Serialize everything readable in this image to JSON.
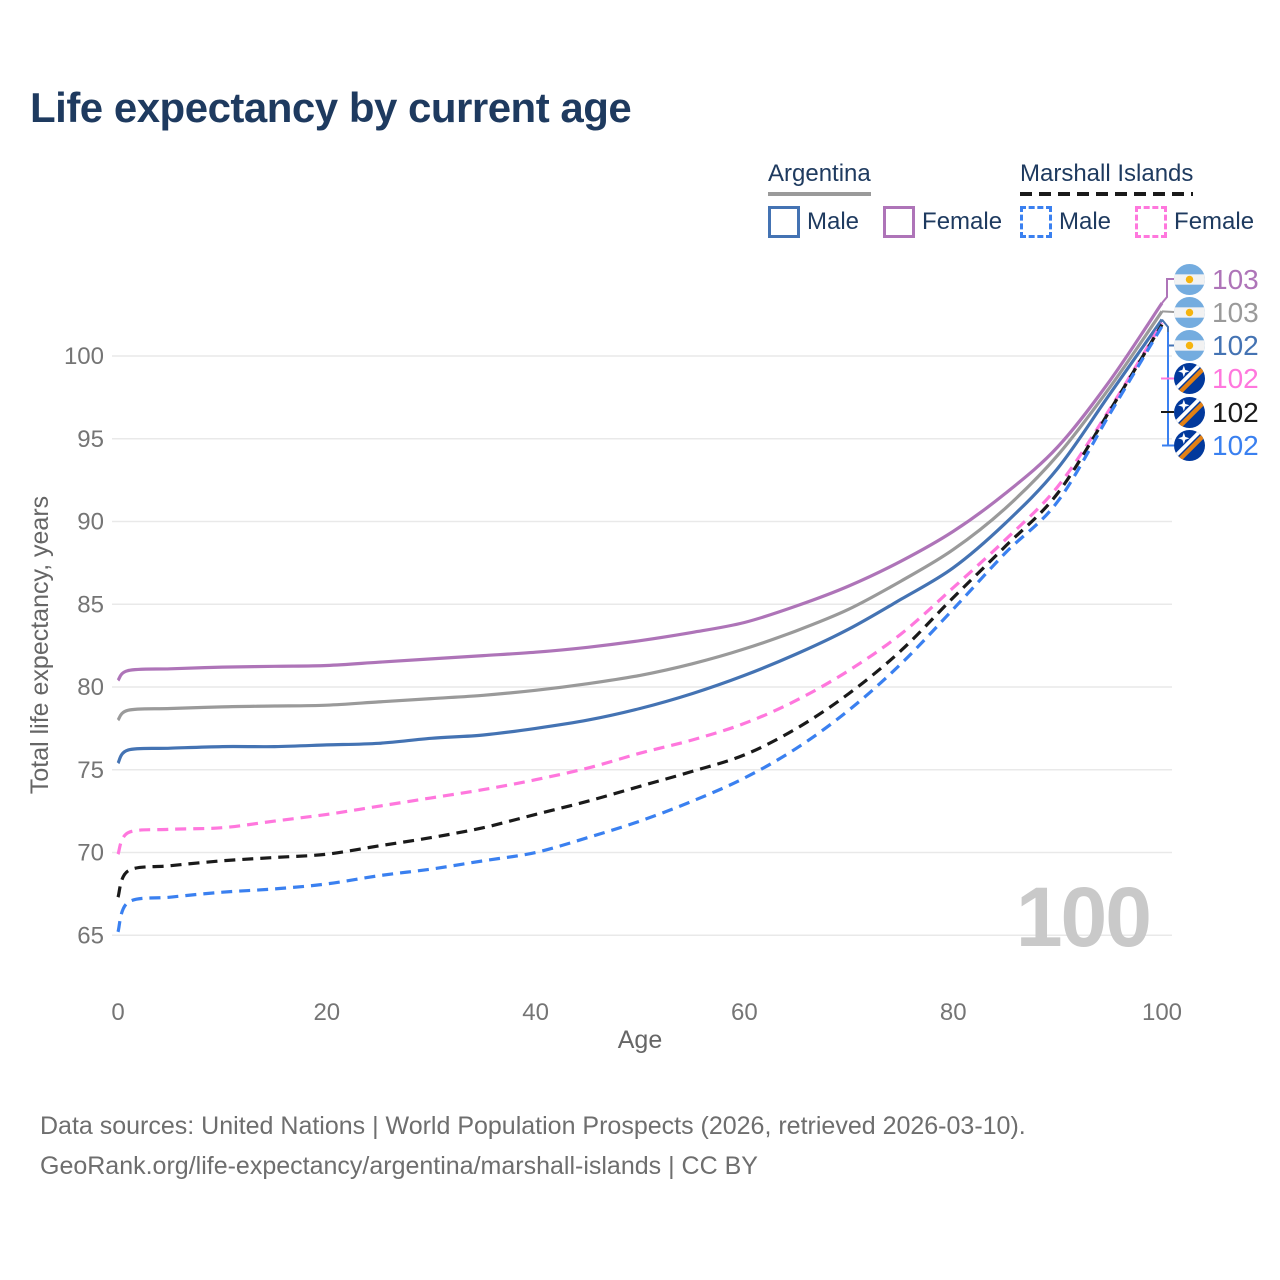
{
  "title": "Life expectancy by current age",
  "legend": {
    "groups": [
      {
        "name": "Argentina",
        "line_style": "solid",
        "line_color": "#9a9a9a",
        "items": [
          {
            "label": "Male",
            "color": "#4473b3",
            "dashed": false
          },
          {
            "label": "Female",
            "color": "#ae74b8",
            "dashed": false
          }
        ]
      },
      {
        "name": "Marshall Islands",
        "line_style": "dashed",
        "line_color": "#1a1a1a",
        "items": [
          {
            "label": "Male",
            "color": "#3a80f0",
            "dashed": true
          },
          {
            "label": "Female",
            "color": "#ff77dd",
            "dashed": true
          }
        ]
      }
    ]
  },
  "axes": {
    "x": {
      "label": "Age",
      "ticks": [
        0,
        20,
        40,
        60,
        80,
        100
      ]
    },
    "y": {
      "label": "Total life expectancy, years",
      "ticks": [
        65,
        70,
        75,
        80,
        85,
        90,
        95,
        100
      ]
    }
  },
  "watermark": "100",
  "footer": {
    "line1": "Data sources: United Nations | World Population Prospects (2026, retrieved 2026-03-10).",
    "line2": "GeoRank.org/life-expectancy/argentina/marshall-islands | CC BY"
  },
  "end_labels": [
    {
      "value": "103",
      "color": "#ae74b8",
      "flag": "argentina",
      "series": "argentina-female"
    },
    {
      "value": "103",
      "color": "#9a9a9a",
      "flag": "argentina",
      "series": "argentina-both"
    },
    {
      "value": "102",
      "color": "#4473b3",
      "flag": "argentina",
      "series": "argentina-male"
    },
    {
      "value": "102",
      "color": "#ff77dd",
      "flag": "marshall-islands",
      "series": "marshall-islands-female"
    },
    {
      "value": "102",
      "color": "#1a1a1a",
      "flag": "marshall-islands",
      "series": "marshall-islands-both"
    },
    {
      "value": "102",
      "color": "#3a80f0",
      "flag": "marshall-islands",
      "series": "marshall-islands-male"
    }
  ],
  "colors": {
    "navy": "#1e3a5f",
    "grid": "#e9e9e9",
    "tick_text": "#757575",
    "axis_title": "#666666",
    "footer_text": "#6e6e6e",
    "watermark": "#c9c9c9"
  },
  "chart_data": {
    "type": "line",
    "title": "Life expectancy by current age",
    "xlabel": "Age",
    "ylabel": "Total life expectancy, years",
    "xlim": [
      0,
      100
    ],
    "ylim": [
      63,
      104
    ],
    "grid": "horizontal-only",
    "legend_position": "top-right",
    "series": [
      {
        "id": "argentina-female",
        "name": "Argentina Female",
        "country": "Argentina",
        "sex": "Female",
        "color": "#ae74b8",
        "dashed": false,
        "end_label": 103,
        "points": [
          [
            0,
            80.4
          ],
          [
            1,
            81.0
          ],
          [
            5,
            81.1
          ],
          [
            10,
            81.2
          ],
          [
            15,
            81.25
          ],
          [
            20,
            81.3
          ],
          [
            25,
            81.5
          ],
          [
            30,
            81.7
          ],
          [
            35,
            81.9
          ],
          [
            40,
            82.1
          ],
          [
            45,
            82.4
          ],
          [
            50,
            82.8
          ],
          [
            55,
            83.3
          ],
          [
            60,
            83.9
          ],
          [
            65,
            84.9
          ],
          [
            70,
            86.1
          ],
          [
            75,
            87.6
          ],
          [
            80,
            89.4
          ],
          [
            85,
            91.7
          ],
          [
            90,
            94.5
          ],
          [
            95,
            98.5
          ],
          [
            100,
            103.2
          ]
        ]
      },
      {
        "id": "argentina-both",
        "name": "Argentina Both sexes",
        "country": "Argentina",
        "sex": "Both",
        "color": "#9a9a9a",
        "dashed": false,
        "end_label": 103,
        "points": [
          [
            0,
            78.0
          ],
          [
            1,
            78.6
          ],
          [
            5,
            78.7
          ],
          [
            10,
            78.8
          ],
          [
            15,
            78.85
          ],
          [
            20,
            78.9
          ],
          [
            25,
            79.1
          ],
          [
            30,
            79.3
          ],
          [
            35,
            79.5
          ],
          [
            40,
            79.8
          ],
          [
            45,
            80.2
          ],
          [
            50,
            80.7
          ],
          [
            55,
            81.4
          ],
          [
            60,
            82.3
          ],
          [
            65,
            83.4
          ],
          [
            70,
            84.7
          ],
          [
            75,
            86.4
          ],
          [
            80,
            88.3
          ],
          [
            85,
            90.8
          ],
          [
            90,
            94.0
          ],
          [
            95,
            98.1
          ],
          [
            100,
            102.7
          ]
        ]
      },
      {
        "id": "argentina-male",
        "name": "Argentina Male",
        "country": "Argentina",
        "sex": "Male",
        "color": "#4473b3",
        "dashed": false,
        "end_label": 102,
        "points": [
          [
            0,
            75.4
          ],
          [
            1,
            76.2
          ],
          [
            5,
            76.3
          ],
          [
            10,
            76.4
          ],
          [
            15,
            76.4
          ],
          [
            20,
            76.5
          ],
          [
            25,
            76.6
          ],
          [
            30,
            76.9
          ],
          [
            35,
            77.1
          ],
          [
            40,
            77.5
          ],
          [
            45,
            78.0
          ],
          [
            50,
            78.7
          ],
          [
            55,
            79.6
          ],
          [
            60,
            80.7
          ],
          [
            65,
            82.0
          ],
          [
            70,
            83.5
          ],
          [
            75,
            85.3
          ],
          [
            80,
            87.2
          ],
          [
            85,
            89.9
          ],
          [
            90,
            93.2
          ],
          [
            95,
            97.7
          ],
          [
            100,
            102.2
          ]
        ]
      },
      {
        "id": "marshall-islands-female",
        "name": "Marshall Islands Female",
        "country": "Marshall Islands",
        "sex": "Female",
        "color": "#ff77dd",
        "dashed": true,
        "end_label": 102,
        "points": [
          [
            0,
            69.9
          ],
          [
            1,
            71.2
          ],
          [
            5,
            71.4
          ],
          [
            10,
            71.5
          ],
          [
            15,
            71.9
          ],
          [
            20,
            72.3
          ],
          [
            25,
            72.8
          ],
          [
            30,
            73.3
          ],
          [
            35,
            73.8
          ],
          [
            40,
            74.4
          ],
          [
            45,
            75.1
          ],
          [
            50,
            76.0
          ],
          [
            55,
            76.8
          ],
          [
            60,
            77.8
          ],
          [
            65,
            79.2
          ],
          [
            70,
            81.0
          ],
          [
            75,
            83.2
          ],
          [
            80,
            86.0
          ],
          [
            85,
            88.9
          ],
          [
            90,
            92.1
          ],
          [
            95,
            96.8
          ],
          [
            100,
            102.0
          ]
        ]
      },
      {
        "id": "marshall-islands-both",
        "name": "Marshall Islands Both sexes",
        "country": "Marshall Islands",
        "sex": "Both",
        "color": "#1a1a1a",
        "dashed": true,
        "end_label": 102,
        "points": [
          [
            0,
            67.3
          ],
          [
            1,
            68.9
          ],
          [
            5,
            69.2
          ],
          [
            10,
            69.5
          ],
          [
            15,
            69.7
          ],
          [
            20,
            69.9
          ],
          [
            25,
            70.4
          ],
          [
            30,
            70.9
          ],
          [
            35,
            71.5
          ],
          [
            40,
            72.3
          ],
          [
            45,
            73.1
          ],
          [
            50,
            74.0
          ],
          [
            55,
            74.9
          ],
          [
            60,
            75.9
          ],
          [
            65,
            77.5
          ],
          [
            70,
            79.6
          ],
          [
            75,
            82.2
          ],
          [
            80,
            85.4
          ],
          [
            85,
            88.5
          ],
          [
            90,
            91.7
          ],
          [
            95,
            96.7
          ],
          [
            100,
            101.9
          ]
        ]
      },
      {
        "id": "marshall-islands-male",
        "name": "Marshall Islands Male",
        "country": "Marshall Islands",
        "sex": "Male",
        "color": "#3a80f0",
        "dashed": true,
        "end_label": 102,
        "points": [
          [
            0,
            65.2
          ],
          [
            1,
            67.0
          ],
          [
            5,
            67.3
          ],
          [
            10,
            67.6
          ],
          [
            15,
            67.8
          ],
          [
            20,
            68.1
          ],
          [
            25,
            68.6
          ],
          [
            30,
            69.0
          ],
          [
            35,
            69.5
          ],
          [
            40,
            70.0
          ],
          [
            45,
            70.9
          ],
          [
            50,
            71.9
          ],
          [
            55,
            73.1
          ],
          [
            60,
            74.5
          ],
          [
            65,
            76.3
          ],
          [
            70,
            78.6
          ],
          [
            75,
            81.4
          ],
          [
            80,
            84.7
          ],
          [
            85,
            88.1
          ],
          [
            90,
            91.2
          ],
          [
            95,
            96.5
          ],
          [
            100,
            101.8
          ]
        ]
      }
    ]
  }
}
